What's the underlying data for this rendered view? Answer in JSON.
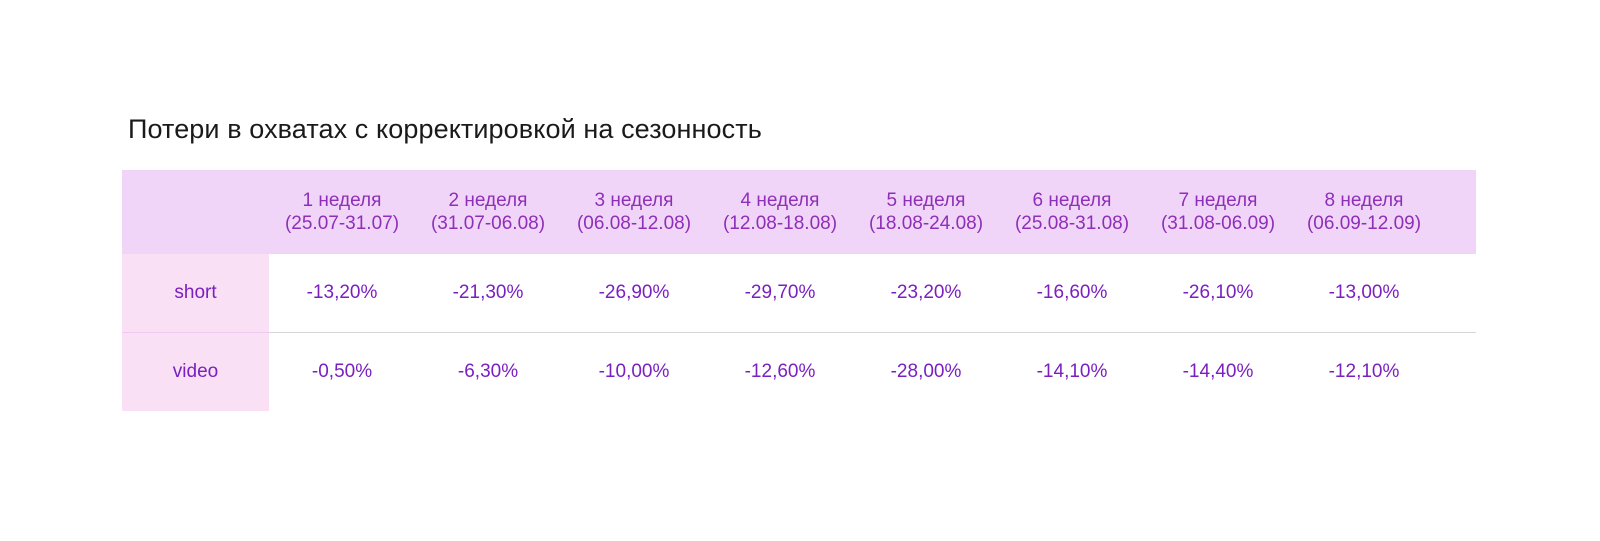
{
  "title": "Потери в охватах с корректировкой на сезонность",
  "table": {
    "corner": "",
    "columns": [
      {
        "week": "1 неделя",
        "range": "(25.07-31.07)"
      },
      {
        "week": "2 неделя",
        "range": "(31.07-06.08)"
      },
      {
        "week": "3 неделя",
        "range": "(06.08-12.08)"
      },
      {
        "week": "4 неделя",
        "range": "(12.08-18.08)"
      },
      {
        "week": "5 неделя",
        "range": "(18.08-24.08)"
      },
      {
        "week": "6 неделя",
        "range": "(25.08-31.08)"
      },
      {
        "week": "7 неделя",
        "range": "(31.08-06.09)"
      },
      {
        "week": "8 неделя",
        "range": "(06.09-12.09)"
      }
    ],
    "rows": [
      {
        "label": "short",
        "values": [
          "-13,20%",
          "-21,30%",
          "-26,90%",
          "-29,70%",
          "-23,20%",
          "-16,60%",
          "-26,10%",
          "-13,00%"
        ]
      },
      {
        "label": "video",
        "values": [
          "-0,50%",
          "-6,30%",
          "-10,00%",
          "-12,60%",
          "-28,00%",
          "-14,10%",
          "-14,40%",
          "-12,10%"
        ]
      }
    ]
  },
  "colors": {
    "header_bg": "#f1d5f9",
    "header_text": "#8e2fb8",
    "row_label_bg": "#f9e0f4",
    "value_text": "#7a1fc0",
    "divider": "#d6d6d6"
  }
}
